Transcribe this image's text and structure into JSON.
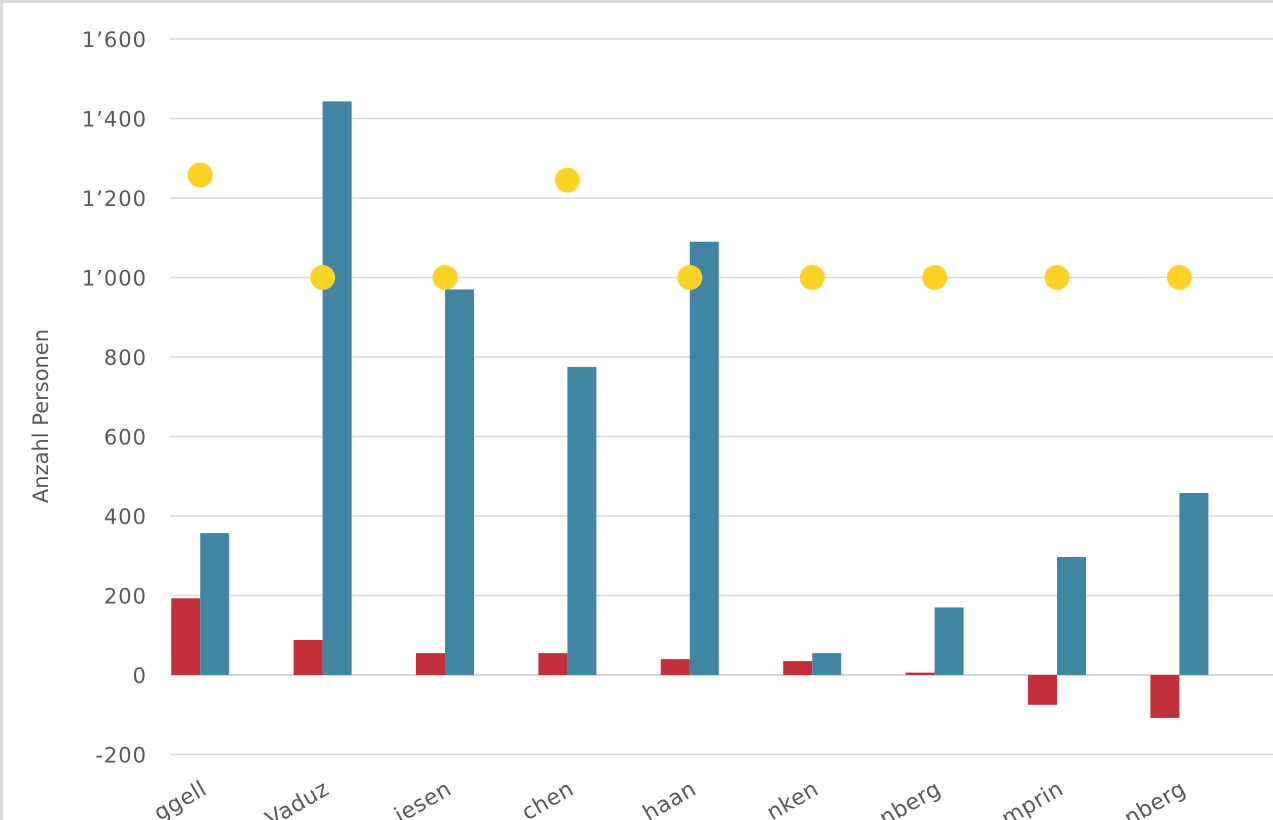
{
  "chart_data": {
    "type": "bar",
    "categories": [
      "Ruggell",
      "Vaduz",
      "Triesen",
      "Eschen",
      "Schaan",
      "Planken",
      "Triesenberg",
      "Gamprin",
      "Schellenberg"
    ],
    "categories_visible": [
      "ggell",
      "Vaduz",
      "iesen",
      "chen",
      "haan",
      "nken",
      "nberg",
      "mprin",
      "nberg"
    ],
    "series": [
      {
        "values": [
          193,
          88,
          55,
          55,
          40,
          35,
          6,
          -75,
          -108
        ],
        "color": "#c3303a",
        "kind": "bar"
      },
      {
        "values": [
          357,
          1443,
          970,
          775,
          1090,
          55,
          170,
          297,
          458
        ],
        "color": "#4185a5",
        "kind": "bar"
      },
      {
        "values": [
          1258,
          1000,
          1000,
          1245,
          1000,
          1000,
          1000,
          1000,
          1000
        ],
        "color": "#ffd323",
        "kind": "marker"
      }
    ],
    "ylabel": "Anzahl Personen",
    "ylim": [
      -200,
      1600
    ],
    "yticks": [
      -200,
      0,
      200,
      400,
      600,
      800,
      1000,
      1200,
      1400,
      1600
    ],
    "ytick_labels": [
      "-200",
      "0",
      "200",
      "400",
      "600",
      "800",
      "1’000",
      "1’200",
      "1’400",
      "1’600"
    ],
    "grid": true,
    "legend": "none"
  }
}
